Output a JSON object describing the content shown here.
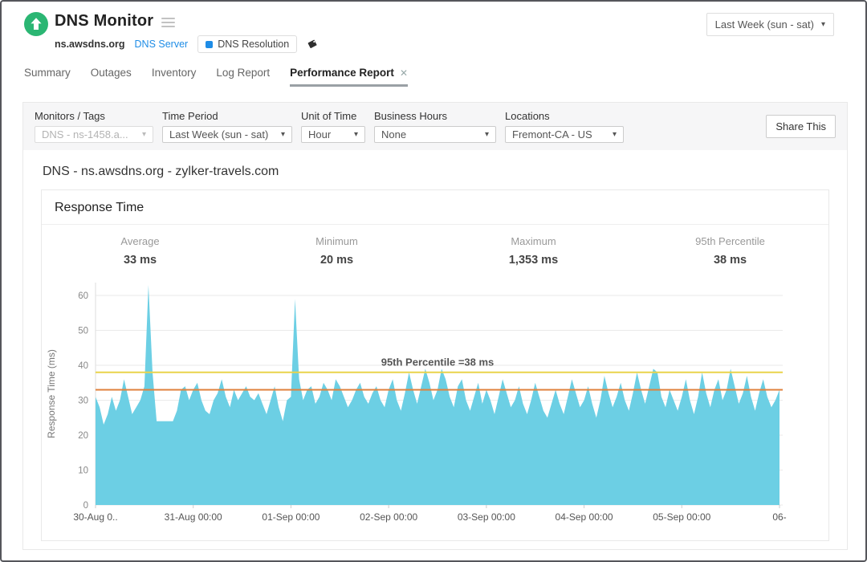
{
  "header": {
    "app_title": "DNS Monitor",
    "monitor_host": "ns.awsdns.org",
    "monitor_type": "DNS Server",
    "resolution_badge": "DNS Resolution",
    "period_dropdown": "Last Week (sun - sat)"
  },
  "icons": {
    "close": "✕",
    "caret": "▾"
  },
  "tabs": [
    {
      "label": "Summary"
    },
    {
      "label": "Outages"
    },
    {
      "label": "Inventory"
    },
    {
      "label": "Log Report"
    },
    {
      "label": "Performance Report"
    }
  ],
  "filters": [
    {
      "label": "Monitors / Tags",
      "value": "DNS - ns-1458.a..."
    },
    {
      "label": "Time Period",
      "value": "Last Week (sun - sat)"
    },
    {
      "label": "Unit of Time",
      "value": "Hour"
    },
    {
      "label": "Business Hours",
      "value": "None"
    },
    {
      "label": "Locations",
      "value": "Fremont-CA - US"
    }
  ],
  "share_label": "Share This",
  "report": {
    "heading": "DNS - ns.awsdns.org - zylker-travels.com",
    "card_title": "Response Time",
    "stats": [
      {
        "label": "Average",
        "value": "33 ms"
      },
      {
        "label": "Minimum",
        "value": "20 ms"
      },
      {
        "label": "Maximum",
        "value": "1,353 ms"
      },
      {
        "label": "95th Percentile",
        "value": "38 ms"
      }
    ]
  },
  "chart_data": {
    "type": "area",
    "title": "Response Time",
    "ylabel": "Response Time (ms)",
    "ylim": [
      0,
      63.5
    ],
    "yticks": [
      0,
      10,
      20,
      30,
      40,
      50,
      60
    ],
    "x_unit": "hour",
    "x_start": "30-Aug 00:00",
    "x_tick_labels": [
      "30-Aug 0..",
      "31-Aug 00:00",
      "01-Sep 00:00",
      "02-Sep 00:00",
      "03-Sep 00:00",
      "04-Sep 00:00",
      "05-Sep 00:00",
      "06-"
    ],
    "grid": "horizontal",
    "area_color": "#6ccfe4",
    "annotation": "95th Percentile =38 ms",
    "reference_lines": [
      {
        "name": "percentile-95-line",
        "label": "95th Percentile",
        "value": 38,
        "color": "#e9d44b"
      },
      {
        "name": "average-line",
        "label": "Average",
        "value": 33,
        "color": "#e0813c"
      }
    ],
    "values_ms": [
      31,
      28,
      23,
      26,
      31,
      27,
      30,
      36,
      31,
      26,
      28,
      30,
      34,
      63,
      38,
      24,
      24,
      24,
      24,
      24,
      27,
      33,
      34,
      30,
      33,
      35,
      30,
      27,
      26,
      30,
      32,
      36,
      31,
      28,
      33,
      30,
      32,
      34,
      31,
      30,
      32,
      29,
      26,
      30,
      34,
      28,
      24,
      30,
      31,
      59,
      36,
      30,
      33,
      34,
      29,
      31,
      35,
      33,
      30,
      36,
      34,
      31,
      28,
      30,
      33,
      35,
      31,
      29,
      32,
      34,
      30,
      28,
      33,
      36,
      30,
      27,
      32,
      38,
      33,
      29,
      34,
      39,
      35,
      30,
      33,
      39,
      36,
      31,
      28,
      34,
      36,
      30,
      27,
      31,
      35,
      29,
      33,
      30,
      26,
      31,
      36,
      32,
      28,
      30,
      34,
      29,
      26,
      30,
      35,
      31,
      27,
      25,
      29,
      33,
      29,
      26,
      31,
      36,
      32,
      28,
      30,
      34,
      29,
      25,
      30,
      37,
      32,
      28,
      31,
      35,
      30,
      27,
      32,
      38,
      33,
      29,
      34,
      39,
      38,
      31,
      28,
      33,
      30,
      27,
      31,
      36,
      30,
      26,
      31,
      38,
      32,
      28,
      33,
      36,
      30,
      33,
      39,
      34,
      29,
      32,
      37,
      31,
      27,
      32,
      36,
      31,
      28,
      30,
      33
    ]
  }
}
